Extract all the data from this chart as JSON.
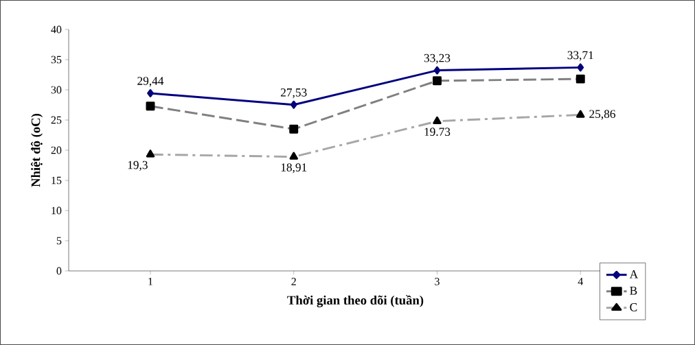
{
  "chart_data": {
    "type": "line",
    "xlabel": "Thời gian theo dõi (tuần)",
    "ylabel": "Nhiệt độ (oC)",
    "categories": [
      "1",
      "2",
      "3",
      "4"
    ],
    "ylim": [
      0,
      40
    ],
    "yticks": [
      0,
      5,
      10,
      15,
      20,
      25,
      30,
      35,
      40
    ],
    "grid": false,
    "legend": "bottom right",
    "series": [
      {
        "name": "A",
        "color": "#000080",
        "marker": "diamond",
        "line_style": "solid",
        "values": [
          29.44,
          27.53,
          33.23,
          33.71
        ],
        "value_labels": [
          "29,44",
          "27,53",
          "33,23",
          "33,71"
        ]
      },
      {
        "name": "B",
        "color": "#808080",
        "marker": "square",
        "line_style": "dashed",
        "values": [
          27.3,
          23.5,
          31.5,
          31.8
        ]
      },
      {
        "name": "C",
        "color": "#a6a6a6",
        "marker": "triangle",
        "line_style": "dashdot",
        "values": [
          19.3,
          18.91,
          24.8,
          25.86
        ],
        "value_labels": [
          "19,3",
          "18,91",
          null,
          "25,86"
        ]
      }
    ],
    "annotations": [
      {
        "text": "19.73",
        "x": "3",
        "y": 24.8
      }
    ]
  }
}
